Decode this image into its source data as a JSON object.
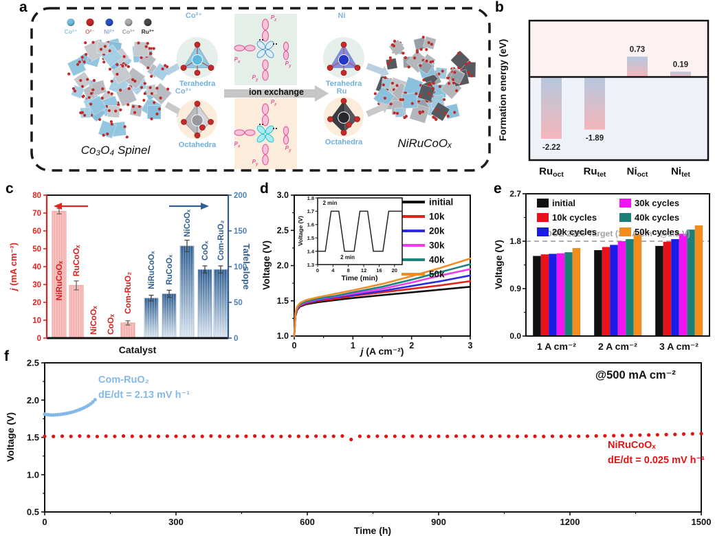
{
  "panels": {
    "a": "a",
    "b": "b",
    "c": "c",
    "d": "d",
    "e": "e",
    "f": "f"
  },
  "panel_a": {
    "legend": [
      {
        "name": "Co²⁺",
        "color": "#6fbddf",
        "text_color": "#8cc3de"
      },
      {
        "name": "O²⁻",
        "color": "#c22825",
        "text_color": "#d4716f"
      },
      {
        "name": "Ni²⁺",
        "color": "#2b50c0",
        "text_color": "#8fa8da"
      },
      {
        "name": "Co³⁺",
        "color": "#aaaaae",
        "text_color": "#9d9da3"
      },
      {
        "name": "Ru³⁺",
        "color": "#48484c",
        "text_color": "#2b2b2e"
      }
    ],
    "spinel_label": "Co₃O₄ Spinel",
    "product_label": "NiRuCoOₓ",
    "ion_exchange_label": "ion exchange",
    "site_left_top": {
      "ion": "Co²⁺",
      "shape": "Terahedra"
    },
    "site_left_bottom": {
      "ion": "Co³⁺",
      "shape": "Octahedra"
    },
    "site_right_top": {
      "ion": "Ni",
      "shape": "Terahedra"
    },
    "site_right_bottom": {
      "ion": "Ru",
      "shape": "Octahedra"
    },
    "orbital_labels": {
      "pz": {
        "b": "P",
        "s": "z"
      },
      "px": {
        "b": "P",
        "s": "x"
      },
      "py": {
        "b": "P",
        "s": "y"
      }
    }
  },
  "chart_data": [
    {
      "id": "b",
      "type": "bar",
      "ylabel": "Formation energy (eV)",
      "categories": [
        {
          "b": "Ru",
          "s": "oct"
        },
        {
          "b": "Ru",
          "s": "tet"
        },
        {
          "b": "Ni",
          "s": "oct"
        },
        {
          "b": "Ni",
          "s": "tet"
        }
      ],
      "values": [
        -2.22,
        -1.89,
        0.73,
        0.19
      ],
      "ylim": [
        -3.0,
        2.0
      ],
      "bg_positive": "#fdf2f0",
      "bg_negative": "#edf3f8",
      "bar_gradient": [
        "#b5c8de",
        "#f4b6ba"
      ]
    },
    {
      "id": "c",
      "type": "bar-dual",
      "xlabel": "Catalyst",
      "categories": [
        "NiRuCoOₓ",
        "RuCoOₓ",
        "NiCoOₓ",
        "CoOₓ",
        "Com-RuO₂"
      ],
      "left": {
        "label": "j (mA cm⁻²)",
        "color": "#e02420",
        "bar_color": "#f4b1b0",
        "bar_edge": "#eb9e9d",
        "lim": [
          0,
          80
        ],
        "tick_step": 10,
        "values": [
          71,
          29.5,
          0,
          0,
          8.5
        ],
        "errors": [
          1.5,
          2.5,
          0,
          0,
          1.2
        ]
      },
      "right": {
        "label": "Tafel slope",
        "color": "#305f94",
        "tick_color": "#4d82b8",
        "bar_gradient": [
          "#2b5c8f",
          "#d9e4ee"
        ],
        "lim": [
          0,
          200
        ],
        "tick_step": 50,
        "values": [
          56,
          62,
          129,
          96,
          96
        ],
        "errors": [
          4,
          5,
          8,
          5,
          5
        ]
      }
    },
    {
      "id": "d",
      "type": "line",
      "xlabel": "j (A cm⁻²)",
      "ylabel": "Voltage (V)",
      "xlim": [
        0,
        3
      ],
      "ylim": [
        1.0,
        3.0
      ],
      "xticks": [
        0,
        1,
        2,
        3
      ],
      "yticks": [
        1.0,
        1.5,
        2.0,
        2.5,
        3.0
      ],
      "series": [
        {
          "name": "initial",
          "color": "#111111",
          "points": [
            [
              0,
              1.0
            ],
            [
              0.02,
              1.28
            ],
            [
              0.05,
              1.37
            ],
            [
              0.1,
              1.42
            ],
            [
              0.2,
              1.45
            ],
            [
              0.4,
              1.48
            ],
            [
              0.7,
              1.51
            ],
            [
              1.0,
              1.54
            ],
            [
              1.5,
              1.58
            ],
            [
              2.0,
              1.62
            ],
            [
              2.5,
              1.66
            ],
            [
              3.0,
              1.7
            ]
          ]
        },
        {
          "name": "10k",
          "color": "#e2231a",
          "points": [
            [
              0,
              1.0
            ],
            [
              0.02,
              1.29
            ],
            [
              0.05,
              1.38
            ],
            [
              0.1,
              1.43
            ],
            [
              0.2,
              1.46
            ],
            [
              0.4,
              1.5
            ],
            [
              0.7,
              1.53
            ],
            [
              1.0,
              1.57
            ],
            [
              1.5,
              1.62
            ],
            [
              2.0,
              1.67
            ],
            [
              2.5,
              1.72
            ],
            [
              3.0,
              1.78
            ]
          ]
        },
        {
          "name": "20k",
          "color": "#2b2be0",
          "points": [
            [
              0,
              1.0
            ],
            [
              0.02,
              1.3
            ],
            [
              0.05,
              1.39
            ],
            [
              0.1,
              1.44
            ],
            [
              0.2,
              1.47
            ],
            [
              0.4,
              1.51
            ],
            [
              0.7,
              1.55
            ],
            [
              1.0,
              1.58
            ],
            [
              1.5,
              1.64
            ],
            [
              2.0,
              1.71
            ],
            [
              2.5,
              1.78
            ],
            [
              3.0,
              1.86
            ]
          ]
        },
        {
          "name": "30k",
          "color": "#ee3cee",
          "points": [
            [
              0,
              1.0
            ],
            [
              0.02,
              1.3
            ],
            [
              0.05,
              1.39
            ],
            [
              0.1,
              1.44
            ],
            [
              0.2,
              1.48
            ],
            [
              0.4,
              1.52
            ],
            [
              0.7,
              1.56
            ],
            [
              1.0,
              1.6
            ],
            [
              1.5,
              1.67
            ],
            [
              2.0,
              1.76
            ],
            [
              2.5,
              1.86
            ],
            [
              3.0,
              1.95
            ]
          ]
        },
        {
          "name": "40k",
          "color": "#1f837d",
          "points": [
            [
              0,
              1.0
            ],
            [
              0.02,
              1.31
            ],
            [
              0.05,
              1.4
            ],
            [
              0.1,
              1.45
            ],
            [
              0.2,
              1.49
            ],
            [
              0.4,
              1.53
            ],
            [
              0.7,
              1.57
            ],
            [
              1.0,
              1.62
            ],
            [
              1.5,
              1.7
            ],
            [
              2.0,
              1.8
            ],
            [
              2.5,
              1.91
            ],
            [
              3.0,
              2.02
            ]
          ]
        },
        {
          "name": "50k",
          "color": "#f08c28",
          "points": [
            [
              0,
              1.0
            ],
            [
              0.02,
              1.33
            ],
            [
              0.05,
              1.42
            ],
            [
              0.1,
              1.47
            ],
            [
              0.2,
              1.51
            ],
            [
              0.4,
              1.55
            ],
            [
              0.7,
              1.6
            ],
            [
              1.0,
              1.65
            ],
            [
              1.5,
              1.74
            ],
            [
              2.0,
              1.85
            ],
            [
              2.5,
              1.97
            ],
            [
              3.0,
              2.1
            ]
          ]
        }
      ],
      "inset": {
        "xlabel": "Time (min)",
        "ylabel": "Voltage (V)",
        "xlim": [
          0,
          22
        ],
        "ylim": [
          1.3,
          1.8
        ],
        "xticks": [
          0,
          4,
          8,
          12,
          16,
          20
        ],
        "yticks": [
          1.3,
          1.4,
          1.5,
          1.6,
          1.7,
          1.8
        ],
        "wave": [
          [
            0,
            1.4
          ],
          [
            2,
            1.4
          ],
          [
            3.5,
            1.7
          ],
          [
            5.5,
            1.7
          ],
          [
            7,
            1.4
          ],
          [
            9.5,
            1.4
          ],
          [
            11,
            1.7
          ],
          [
            13,
            1.7
          ],
          [
            14.5,
            1.4
          ],
          [
            17,
            1.4
          ],
          [
            18.5,
            1.7
          ],
          [
            22,
            1.7
          ]
        ],
        "annotations": [
          {
            "text": "2 min",
            "x": 3.2,
            "y": 1.748
          },
          {
            "text": "2 min",
            "x": 7.8,
            "y": 1.342
          }
        ]
      }
    },
    {
      "id": "e",
      "type": "grouped-bar",
      "ylabel": "Voltage (V)",
      "ylim": [
        0,
        2.7
      ],
      "yticks": [
        "0.0",
        "0.9",
        "1.8",
        "2.7"
      ],
      "groups": [
        "1 A cm⁻²",
        "2 A cm⁻²",
        "3 A cm⁻²"
      ],
      "series": [
        {
          "name": "initial",
          "color": "#111111",
          "values": [
            1.52,
            1.63,
            1.71
          ]
        },
        {
          "name": "10k cycles",
          "color": "#e8121a",
          "values": [
            1.55,
            1.69,
            1.79
          ]
        },
        {
          "name": "20k cycles",
          "color": "#1b1be8",
          "values": [
            1.56,
            1.73,
            1.84
          ]
        },
        {
          "name": "30k cycles",
          "color": "#f214f2",
          "values": [
            1.57,
            1.8,
            1.94
          ]
        },
        {
          "name": "40k cycles",
          "color": "#1c7f78",
          "values": [
            1.59,
            1.84,
            2.02
          ]
        },
        {
          "name": "50k cycles",
          "color": "#f28d1d",
          "values": [
            1.67,
            1.93,
            2.1
          ]
        }
      ],
      "target": {
        "value": 1.8,
        "label": "DOE 2026 Target (3.0 A cm⁻²@1.8 V)",
        "color": "#a2a2a2"
      }
    },
    {
      "id": "f",
      "type": "scatter",
      "xlabel": "Time (h)",
      "ylabel": "Voltage (V)",
      "xlim": [
        0,
        1500
      ],
      "ylim": [
        0.5,
        2.5
      ],
      "xticks": [
        0,
        300,
        600,
        900,
        1200,
        1500
      ],
      "yticks": [
        "0.5",
        "1.0",
        "1.5",
        "2.0",
        "2.5"
      ],
      "condition_label": "@500 mA cm⁻²",
      "series": [
        {
          "name": "Com-RuO₂",
          "color": "#84b9e8",
          "rate_label": "dE/dt = 2.13 mV h⁻¹",
          "points": [
            [
              0,
              1.812
            ],
            [
              5,
              1.806
            ],
            [
              10,
              1.802
            ],
            [
              15,
              1.8
            ],
            [
              20,
              1.8
            ],
            [
              25,
              1.802
            ],
            [
              30,
              1.805
            ],
            [
              35,
              1.808
            ],
            [
              40,
              1.812
            ],
            [
              45,
              1.817
            ],
            [
              50,
              1.822
            ],
            [
              55,
              1.828
            ],
            [
              60,
              1.835
            ],
            [
              65,
              1.843
            ],
            [
              70,
              1.852
            ],
            [
              75,
              1.862
            ],
            [
              80,
              1.873
            ],
            [
              85,
              1.885
            ],
            [
              90,
              1.898
            ],
            [
              95,
              1.913
            ],
            [
              100,
              1.93
            ],
            [
              105,
              1.95
            ],
            [
              110,
              1.975
            ],
            [
              115,
              2.005
            ]
          ]
        },
        {
          "name": "NiRuCoOₓ",
          "color": "#e01315",
          "rate_label": "dE/dt = 0.025 mV h⁻¹",
          "points": [
            [
              0,
              1.516
            ],
            [
              20,
              1.513
            ],
            [
              40,
              1.517
            ],
            [
              60,
              1.514
            ],
            [
              80,
              1.518
            ],
            [
              100,
              1.515
            ],
            [
              120,
              1.512
            ],
            [
              140,
              1.517
            ],
            [
              160,
              1.514
            ],
            [
              180,
              1.518
            ],
            [
              200,
              1.515
            ],
            [
              220,
              1.513
            ],
            [
              240,
              1.517
            ],
            [
              260,
              1.514
            ],
            [
              280,
              1.517
            ],
            [
              300,
              1.515
            ],
            [
              320,
              1.512
            ],
            [
              340,
              1.516
            ],
            [
              360,
              1.514
            ],
            [
              380,
              1.518
            ],
            [
              400,
              1.515
            ],
            [
              420,
              1.513
            ],
            [
              440,
              1.517
            ],
            [
              460,
              1.515
            ],
            [
              480,
              1.518
            ],
            [
              500,
              1.514
            ],
            [
              520,
              1.516
            ],
            [
              540,
              1.513
            ],
            [
              560,
              1.517
            ],
            [
              580,
              1.515
            ],
            [
              600,
              1.513
            ],
            [
              620,
              1.517
            ],
            [
              640,
              1.514
            ],
            [
              660,
              1.516
            ],
            [
              680,
              1.518
            ],
            [
              700,
              1.472
            ],
            [
              720,
              1.515
            ],
            [
              740,
              1.513
            ],
            [
              760,
              1.517
            ],
            [
              780,
              1.514
            ],
            [
              800,
              1.516
            ],
            [
              820,
              1.513
            ],
            [
              840,
              1.517
            ],
            [
              860,
              1.515
            ],
            [
              880,
              1.513
            ],
            [
              900,
              1.516
            ],
            [
              920,
              1.514
            ],
            [
              940,
              1.517
            ],
            [
              960,
              1.515
            ],
            [
              980,
              1.513
            ],
            [
              1000,
              1.516
            ],
            [
              1020,
              1.514
            ],
            [
              1040,
              1.517
            ],
            [
              1060,
              1.515
            ],
            [
              1080,
              1.514
            ],
            [
              1100,
              1.517
            ],
            [
              1120,
              1.515
            ],
            [
              1140,
              1.513
            ],
            [
              1160,
              1.516
            ],
            [
              1180,
              1.514
            ],
            [
              1200,
              1.517
            ],
            [
              1220,
              1.516
            ],
            [
              1240,
              1.517
            ],
            [
              1260,
              1.519
            ],
            [
              1280,
              1.521
            ],
            [
              1300,
              1.523
            ],
            [
              1320,
              1.525
            ],
            [
              1340,
              1.527
            ],
            [
              1360,
              1.53
            ],
            [
              1380,
              1.532
            ],
            [
              1400,
              1.535
            ],
            [
              1420,
              1.538
            ],
            [
              1440,
              1.541
            ],
            [
              1460,
              1.545
            ],
            [
              1480,
              1.548
            ],
            [
              1500,
              1.551
            ]
          ]
        }
      ]
    }
  ]
}
